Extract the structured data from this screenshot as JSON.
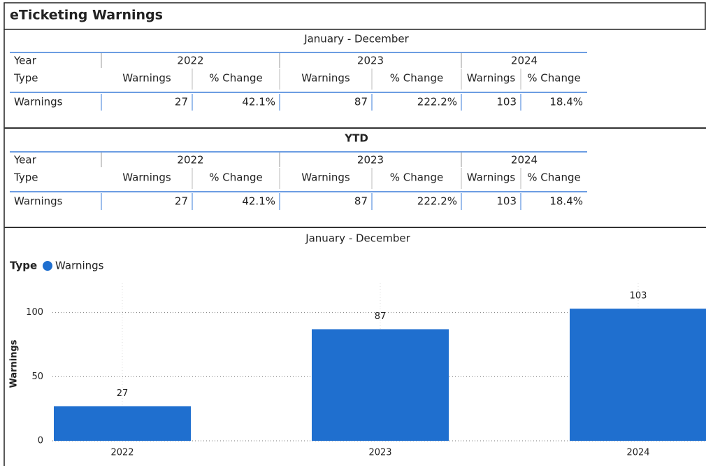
{
  "header": {
    "title": "eTicketing Warnings"
  },
  "tables": [
    {
      "title": "January - December",
      "year_label": "Year",
      "years": [
        "2022",
        "2023",
        "2024"
      ],
      "type_label": "Type",
      "columns": [
        "Warnings",
        "% Change",
        "Warnings",
        "% Change",
        "Warnings",
        "% Change"
      ],
      "row": {
        "label": "Warnings",
        "cells": [
          "27",
          "42.1%",
          "87",
          "222.2%",
          "103",
          "18.4%"
        ]
      }
    },
    {
      "title": "YTD",
      "year_label": "Year",
      "years": [
        "2022",
        "2023",
        "2024"
      ],
      "type_label": "Type",
      "columns": [
        "Warnings",
        "% Change",
        "Warnings",
        "% Change",
        "Warnings",
        "% Change"
      ],
      "row": {
        "label": "Warnings",
        "cells": [
          "27",
          "42.1%",
          "87",
          "222.2%",
          "103",
          "18.4%"
        ]
      }
    }
  ],
  "chart_data": {
    "type": "bar",
    "title": "January - December",
    "legend_title": "Type",
    "categories": [
      "2022",
      "2023",
      "2024"
    ],
    "series": [
      {
        "name": "Warnings",
        "color": "#1f6fcf",
        "values": [
          27,
          87,
          103
        ]
      }
    ],
    "ylabel": "Warnings",
    "ylim": [
      0,
      120
    ],
    "yticks": [
      0,
      50,
      100
    ],
    "grid": true
  }
}
